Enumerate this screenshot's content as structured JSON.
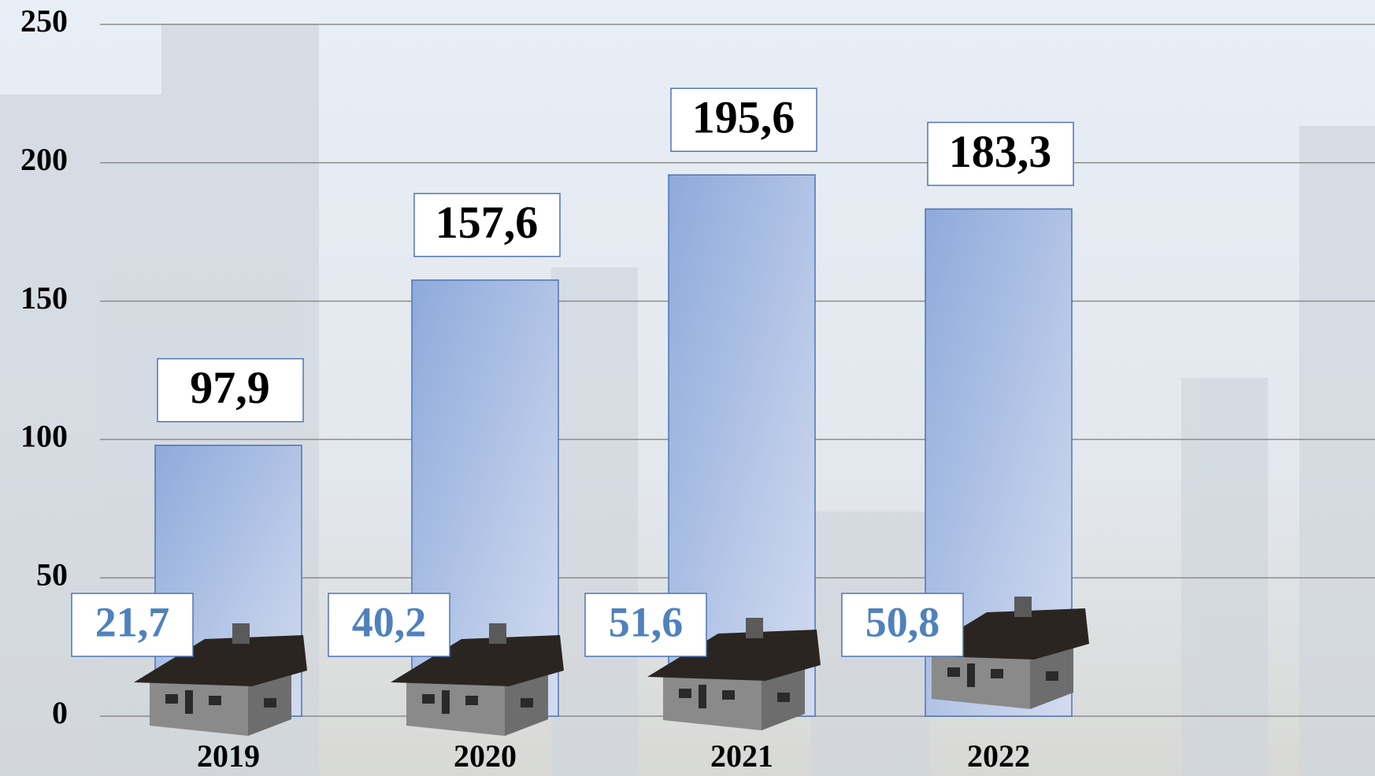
{
  "chart_data": {
    "type": "bar",
    "categories": [
      "2019",
      "2020",
      "2021",
      "2022"
    ],
    "series": [
      {
        "color": "#8eaadb",
        "values": [
          97.9,
          157.6,
          195.6,
          183.3
        ],
        "value_labels": [
          "97,9",
          "157,6",
          "195,6",
          "183,3"
        ]
      },
      {
        "color": "#4f81bd",
        "values": [
          21.7,
          40.2,
          51.6,
          50.8
        ],
        "value_labels": [
          "21,7",
          "40,2",
          "51,6",
          "50,8"
        ]
      }
    ],
    "ylim": [
      0,
      250
    ],
    "yticks": [
      0,
      50,
      100,
      150,
      200,
      250
    ],
    "grid": true
  }
}
